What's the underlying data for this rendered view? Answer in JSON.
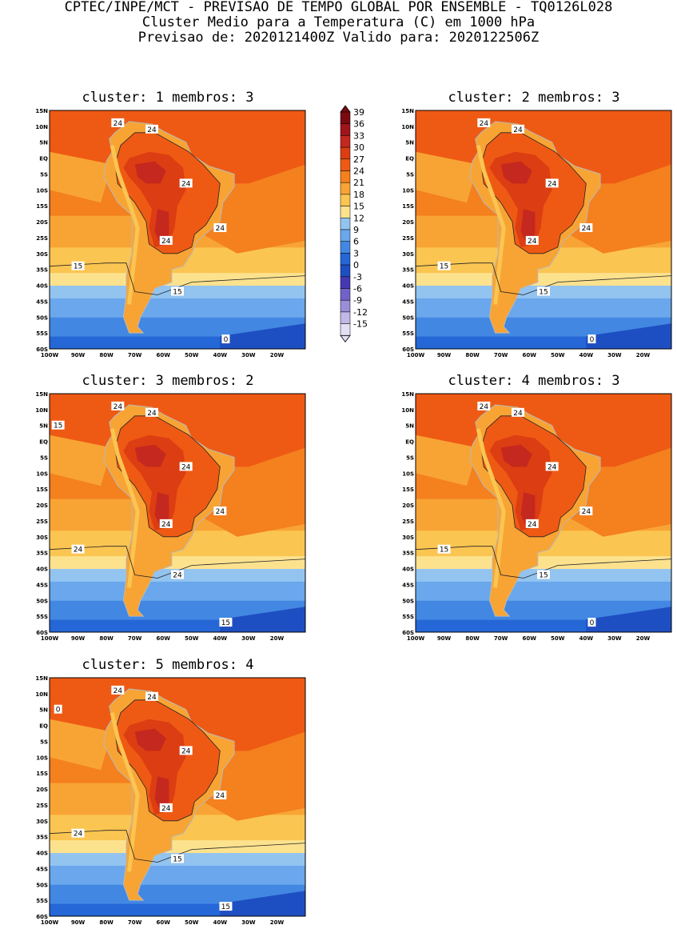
{
  "header": {
    "line1": "CPTEC/INPE/MCT - PREVISAO DE TEMPO GLOBAL POR ENSEMBLE - TQ0126L028",
    "line2": "Cluster Medio para a Temperatura (C) em 1000 hPa",
    "line3": "Previsao de: 2020121400Z   Valido para: 2020122506Z"
  },
  "axes": {
    "lat_labels": [
      "15N",
      "10N",
      "5N",
      "EQ",
      "5S",
      "10S",
      "15S",
      "20S",
      "25S",
      "30S",
      "35S",
      "40S",
      "45S",
      "50S",
      "55S",
      "60S"
    ],
    "lon_labels": [
      "100W",
      "90W",
      "80W",
      "70W",
      "60W",
      "50W",
      "40W",
      "30W",
      "20W"
    ]
  },
  "colorbar": {
    "levels": [
      "39",
      "36",
      "33",
      "30",
      "27",
      "24",
      "21",
      "18",
      "15",
      "12",
      "9",
      "6",
      "3",
      "0",
      "-3",
      "-6",
      "-9",
      "-12",
      "-15"
    ],
    "colors": [
      "#7a0a12",
      "#a0141b",
      "#c4281e",
      "#dc3d12",
      "#ee5a14",
      "#f4801e",
      "#f8a434",
      "#fbc552",
      "#fde28e",
      "#93c4f0",
      "#6aa7ec",
      "#4287e2",
      "#2567d6",
      "#1e4fc2",
      "#4638b4",
      "#7062c8",
      "#9a8ed8",
      "#c2b8e6",
      "#e4dff4"
    ]
  },
  "clusters": [
    {
      "title": "cluster: 1   membros: 3",
      "contour_labels": [
        "24",
        "24",
        "24",
        "24",
        "24",
        "15",
        "15",
        "0"
      ]
    },
    {
      "title": "cluster: 2   membros: 3",
      "contour_labels": [
        "24",
        "24",
        "24",
        "24",
        "24",
        "15",
        "15",
        "0"
      ]
    },
    {
      "title": "cluster: 3   membros: 2",
      "contour_labels": [
        "24",
        "24",
        "24",
        "24",
        "24",
        "24",
        "24",
        "15",
        "15"
      ]
    },
    {
      "title": "cluster: 4   membros: 3",
      "contour_labels": [
        "24",
        "24",
        "24",
        "24",
        "24",
        "15",
        "15",
        "0"
      ]
    },
    {
      "title": "cluster: 5   membros: 4",
      "contour_labels": [
        "24",
        "24",
        "24",
        "24",
        "24",
        "24",
        "15",
        "15",
        "0"
      ]
    }
  ]
}
